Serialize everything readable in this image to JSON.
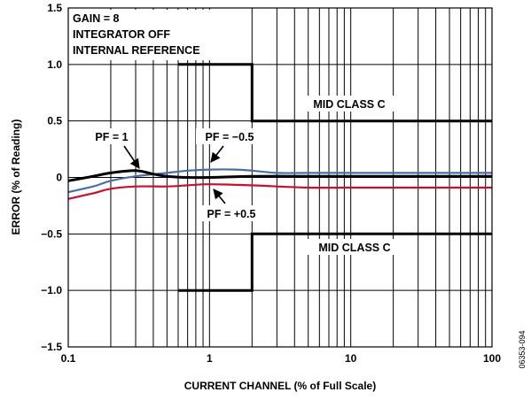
{
  "chart_data": {
    "type": "line",
    "xscale": "log",
    "xlim": [
      0.1,
      100
    ],
    "ylim": [
      -1.5,
      1.5
    ],
    "xlabel": "CURRENT CHANNEL (% of Full Scale)",
    "ylabel": "ERROR (% of Reading)",
    "xticks": [
      {
        "value": 0.1,
        "label": "0.1"
      },
      {
        "value": 1,
        "label": "1"
      },
      {
        "value": 10,
        "label": "10"
      },
      {
        "value": 100,
        "label": "100"
      }
    ],
    "yticks": [
      {
        "value": 1.5,
        "label": "1.5"
      },
      {
        "value": 1.0,
        "label": "1.0"
      },
      {
        "value": 0.5,
        "label": "0.5"
      },
      {
        "value": 0,
        "label": "0"
      },
      {
        "value": -0.5,
        "label": "−0.5"
      },
      {
        "value": -1.0,
        "label": "−1.0"
      },
      {
        "value": -1.5,
        "label": "−1.5"
      }
    ],
    "grid": true,
    "conditions": [
      "GAIN = 8",
      "INTEGRATOR OFF",
      "INTERNAL REFERENCE"
    ],
    "figure_id": "06353-094",
    "series": [
      {
        "name": "PF = 1",
        "color": "#000000",
        "x": [
          0.1,
          0.15,
          0.2,
          0.3,
          0.4,
          0.5,
          0.7,
          1,
          2,
          5,
          10,
          20,
          50,
          100
        ],
        "y": [
          -0.03,
          0.01,
          0.04,
          0.06,
          0.03,
          0.01,
          0.0,
          0.0,
          0.01,
          0.01,
          0.01,
          0.01,
          0.01,
          0.01
        ]
      },
      {
        "name": "PF = −0.5",
        "color": "#4a6fa5",
        "x": [
          0.1,
          0.15,
          0.2,
          0.3,
          0.5,
          0.7,
          1,
          1.5,
          2,
          3,
          5,
          10,
          20,
          50,
          100
        ],
        "y": [
          -0.13,
          -0.08,
          -0.03,
          0.01,
          0.04,
          0.06,
          0.07,
          0.07,
          0.06,
          0.04,
          0.04,
          0.04,
          0.04,
          0.04,
          0.04
        ]
      },
      {
        "name": "PF = +0.5",
        "color": "#c8102e",
        "x": [
          0.1,
          0.15,
          0.2,
          0.3,
          0.5,
          0.7,
          1,
          2,
          5,
          10,
          20,
          50,
          100
        ],
        "y": [
          -0.19,
          -0.14,
          -0.1,
          -0.08,
          -0.08,
          -0.07,
          -0.06,
          -0.07,
          -0.09,
          -0.09,
          -0.09,
          -0.09,
          -0.09
        ]
      }
    ],
    "limits": [
      {
        "name": "MID CLASS C",
        "color": "#000000",
        "points": [
          [
            0.6,
            1.0
          ],
          [
            2,
            1.0
          ],
          [
            2,
            0.5
          ],
          [
            100,
            0.5
          ]
        ]
      },
      {
        "name": "MID CLASS C",
        "color": "#000000",
        "points": [
          [
            0.6,
            -1.0
          ],
          [
            2,
            -1.0
          ],
          [
            2,
            -0.5
          ],
          [
            100,
            -0.5
          ]
        ]
      }
    ],
    "annotations": [
      {
        "text": "PF = 1",
        "at": [
          0.3,
          0.06
        ]
      },
      {
        "text": "PF = −0.5",
        "at": [
          1,
          0.07
        ]
      },
      {
        "text": "PF = +0.5",
        "at": [
          1,
          -0.06
        ]
      }
    ]
  }
}
